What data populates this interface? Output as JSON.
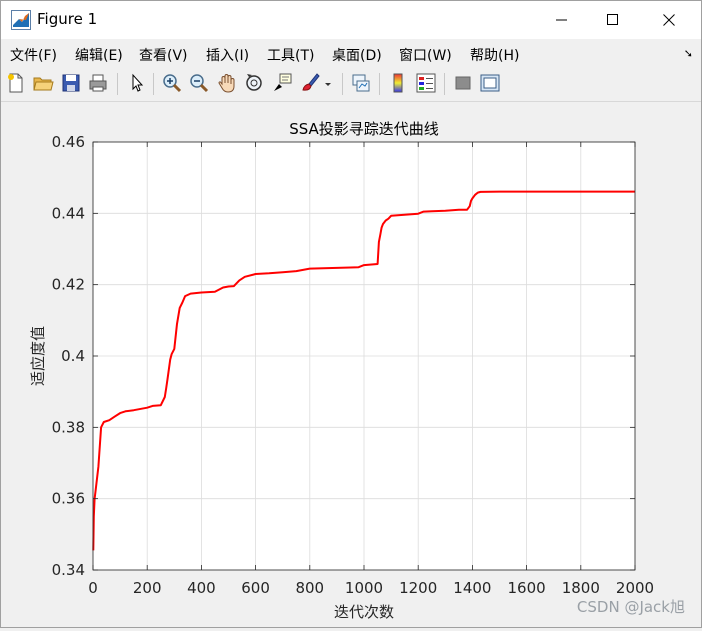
{
  "window": {
    "title": "Figure 1",
    "controls": [
      "minimize-icon",
      "maximize-icon",
      "close-icon"
    ]
  },
  "menu": {
    "items": [
      "文件(F)",
      "编辑(E)",
      "查看(V)",
      "插入(I)",
      "工具(T)",
      "桌面(D)",
      "窗口(W)",
      "帮助(H)"
    ]
  },
  "toolbar": {
    "buttons": [
      "new-figure-icon",
      "open-file-icon",
      "save-icon",
      "print-icon",
      "pointer-icon",
      "zoom-in-icon",
      "zoom-out-icon",
      "pan-hand-icon",
      "rotate-3d-icon",
      "data-cursor-icon",
      "brush-icon",
      "brush-dropdown-icon",
      "link-plot-icon",
      "colorbar-icon",
      "legend-icon",
      "hide-plot-tools-icon",
      "show-plot-tools-icon"
    ]
  },
  "watermark": "CSDN @Jack旭",
  "chart_data": {
    "type": "line",
    "title": "SSA投影寻踪迭代曲线",
    "xlabel": "迭代次数",
    "ylabel": "适应度值",
    "xlim": [
      0,
      2000
    ],
    "ylim": [
      0.34,
      0.46
    ],
    "xticks": [
      "0",
      "200",
      "400",
      "600",
      "800",
      "1000",
      "1200",
      "1400",
      "1600",
      "1800",
      "2000"
    ],
    "yticks": [
      "0.34",
      "0.36",
      "0.38",
      "0.4",
      "0.42",
      "0.44",
      "0.46"
    ],
    "grid": true,
    "series": [
      {
        "color": "#ff0000",
        "x": [
          1,
          3,
          6,
          10,
          20,
          30,
          40,
          60,
          80,
          100,
          120,
          150,
          200,
          220,
          250,
          265,
          270,
          275,
          285,
          290,
          300,
          310,
          320,
          330,
          340,
          360,
          400,
          450,
          480,
          500,
          520,
          540,
          560,
          600,
          650,
          700,
          750,
          800,
          850,
          950,
          980,
          1000,
          1050,
          1055,
          1060,
          1065,
          1070,
          1080,
          1090,
          1100,
          1150,
          1200,
          1220,
          1250,
          1300,
          1350,
          1380,
          1390,
          1395,
          1400,
          1410,
          1420,
          1430,
          1500,
          1600,
          1700,
          1800,
          1900,
          2000
        ],
        "y": [
          0.3455,
          0.355,
          0.36,
          0.3625,
          0.369,
          0.38,
          0.3815,
          0.382,
          0.383,
          0.384,
          0.3845,
          0.3848,
          0.3855,
          0.386,
          0.3862,
          0.3885,
          0.391,
          0.3935,
          0.399,
          0.4005,
          0.402,
          0.409,
          0.4135,
          0.415,
          0.4168,
          0.4175,
          0.4178,
          0.418,
          0.4192,
          0.4195,
          0.4196,
          0.4212,
          0.4222,
          0.423,
          0.4232,
          0.4235,
          0.4238,
          0.4245,
          0.4246,
          0.4248,
          0.4249,
          0.4255,
          0.4258,
          0.432,
          0.434,
          0.436,
          0.437,
          0.438,
          0.4385,
          0.4393,
          0.4396,
          0.4399,
          0.4405,
          0.4406,
          0.4407,
          0.441,
          0.441,
          0.442,
          0.4435,
          0.4442,
          0.4452,
          0.4458,
          0.446,
          0.4461,
          0.4461,
          0.4461,
          0.4461,
          0.4461,
          0.4461
        ]
      }
    ]
  }
}
